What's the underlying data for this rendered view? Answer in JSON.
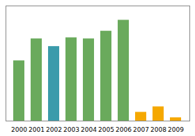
{
  "chart_data": {
    "type": "bar",
    "categories": [
      "2000",
      "2001",
      "2002",
      "2003",
      "2004",
      "2005",
      "2006",
      "2007",
      "2008",
      "2009"
    ],
    "values": [
      55,
      75,
      68,
      76,
      75,
      82,
      92,
      8,
      13,
      3
    ],
    "colors": [
      "#6aaa5c",
      "#6aaa5c",
      "#3b9bab",
      "#6aaa5c",
      "#6aaa5c",
      "#6aaa5c",
      "#6aaa5c",
      "#f5a800",
      "#f5a800",
      "#f5a800"
    ],
    "ylim": [
      0,
      105
    ],
    "yticks": [],
    "grid": false,
    "tick_labels": "x"
  }
}
